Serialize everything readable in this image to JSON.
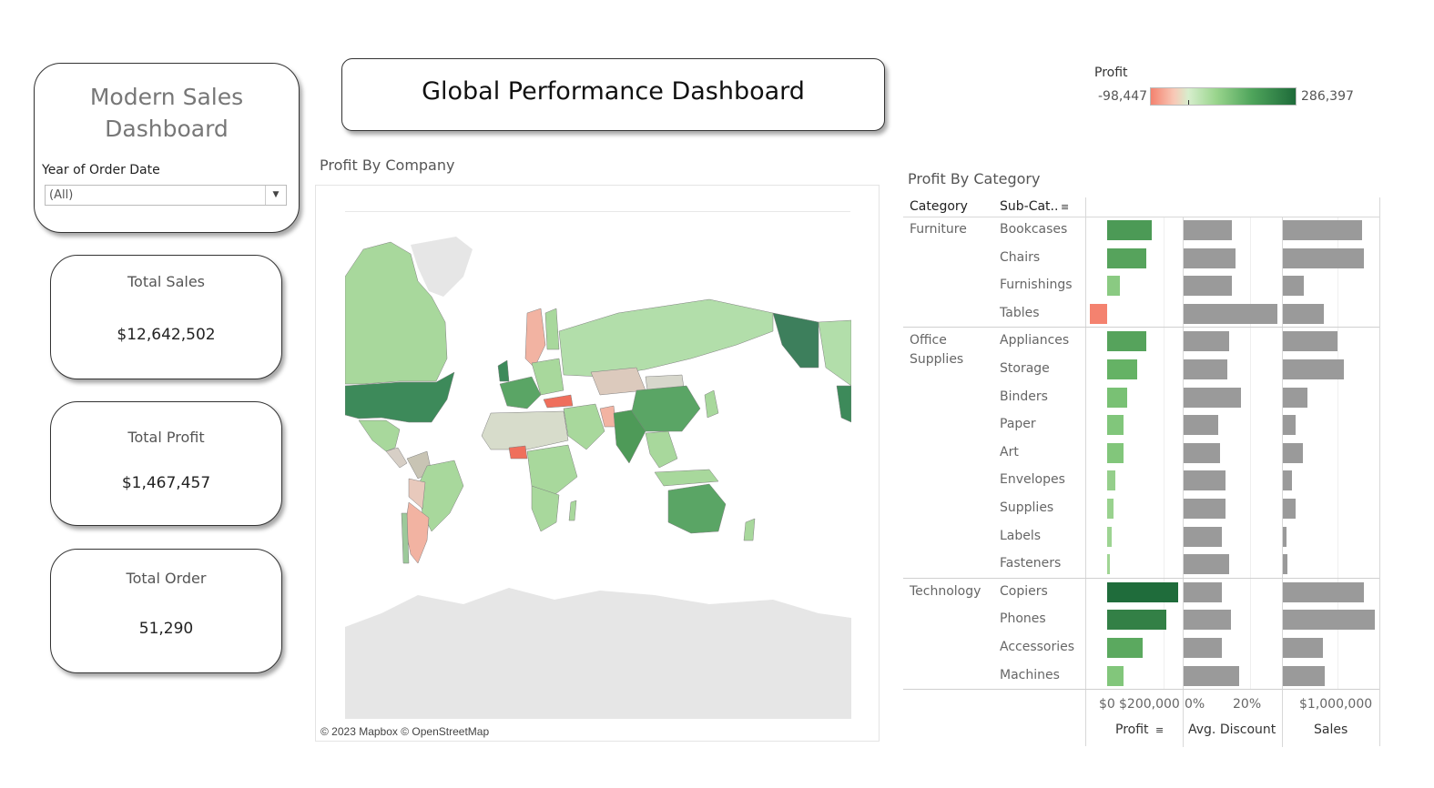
{
  "sidebar": {
    "title_line1": "Modern Sales",
    "title_line2": "Dashboard",
    "filter_label": "Year of Order Date",
    "filter_value": "(All)"
  },
  "kpis": [
    {
      "label": "Total Sales",
      "value": "$12,642,502"
    },
    {
      "label": "Total Profit",
      "value": "$1,467,457"
    },
    {
      "label": "Total Order",
      "value": "51,290"
    }
  ],
  "header": {
    "title": "Global Performance Dashboard"
  },
  "legend": {
    "title": "Profit",
    "min": "-98,447",
    "max": "286,397",
    "colors": {
      "negative": "#f4826f",
      "mid": "#d9d9d9",
      "low_positive": "#a7d99a",
      "high_positive": "#1e6b3a"
    }
  },
  "map": {
    "title": "Profit By Company",
    "attribution": "© 2023 Mapbox © OpenStreetMap"
  },
  "category_panel": {
    "title": "Profit By Category",
    "col_category": "Category",
    "col_subcat": "Sub-Cat..",
    "col_profit": "Profit",
    "col_discount": "Avg. Discount",
    "col_sales": "Sales",
    "axis_profit": [
      "$0",
      "$200,000"
    ],
    "axis_discount": [
      "0%",
      "20%"
    ],
    "axis_sales": [
      "$1,000,000"
    ]
  },
  "chart_data": {
    "type": "bar",
    "groups": [
      {
        "category": "Furniture",
        "rows": [
          {
            "sub": "Bookcases",
            "profit": 161000,
            "discount": 0.14,
            "sales": 1466000
          },
          {
            "sub": "Chairs",
            "profit": 141000,
            "discount": 0.15,
            "sales": 1501000
          },
          {
            "sub": "Furnishings",
            "profit": 46000,
            "discount": 0.14,
            "sales": 385000
          },
          {
            "sub": "Tables",
            "profit": -64000,
            "discount": 0.27,
            "sales": 757000
          }
        ]
      },
      {
        "category": "Office Supplies",
        "rows": [
          {
            "sub": "Appliances",
            "profit": 141000,
            "discount": 0.13,
            "sales": 1011000
          },
          {
            "sub": "Storage",
            "profit": 109000,
            "discount": 0.125,
            "sales": 1127000
          },
          {
            "sub": "Binders",
            "profit": 72000,
            "discount": 0.165,
            "sales": 462000
          },
          {
            "sub": "Paper",
            "profit": 59000,
            "discount": 0.1,
            "sales": 244000
          },
          {
            "sub": "Art",
            "profit": 58000,
            "discount": 0.105,
            "sales": 372000
          },
          {
            "sub": "Envelopes",
            "profit": 29000,
            "discount": 0.12,
            "sales": 170000
          },
          {
            "sub": "Supplies",
            "profit": 22000,
            "discount": 0.12,
            "sales": 243000
          },
          {
            "sub": "Labels",
            "profit": 15000,
            "discount": 0.11,
            "sales": 73000
          },
          {
            "sub": "Fasteners",
            "profit": 11000,
            "discount": 0.13,
            "sales": 83000
          }
        ]
      },
      {
        "category": "Technology",
        "rows": [
          {
            "sub": "Copiers",
            "profit": 258000,
            "discount": 0.11,
            "sales": 1509000
          },
          {
            "sub": "Phones",
            "profit": 216000,
            "discount": 0.135,
            "sales": 1707000
          },
          {
            "sub": "Accessories",
            "profit": 129000,
            "discount": 0.11,
            "sales": 750000
          },
          {
            "sub": "Machines",
            "profit": 58000,
            "discount": 0.16,
            "sales": 780000
          }
        ]
      }
    ]
  }
}
